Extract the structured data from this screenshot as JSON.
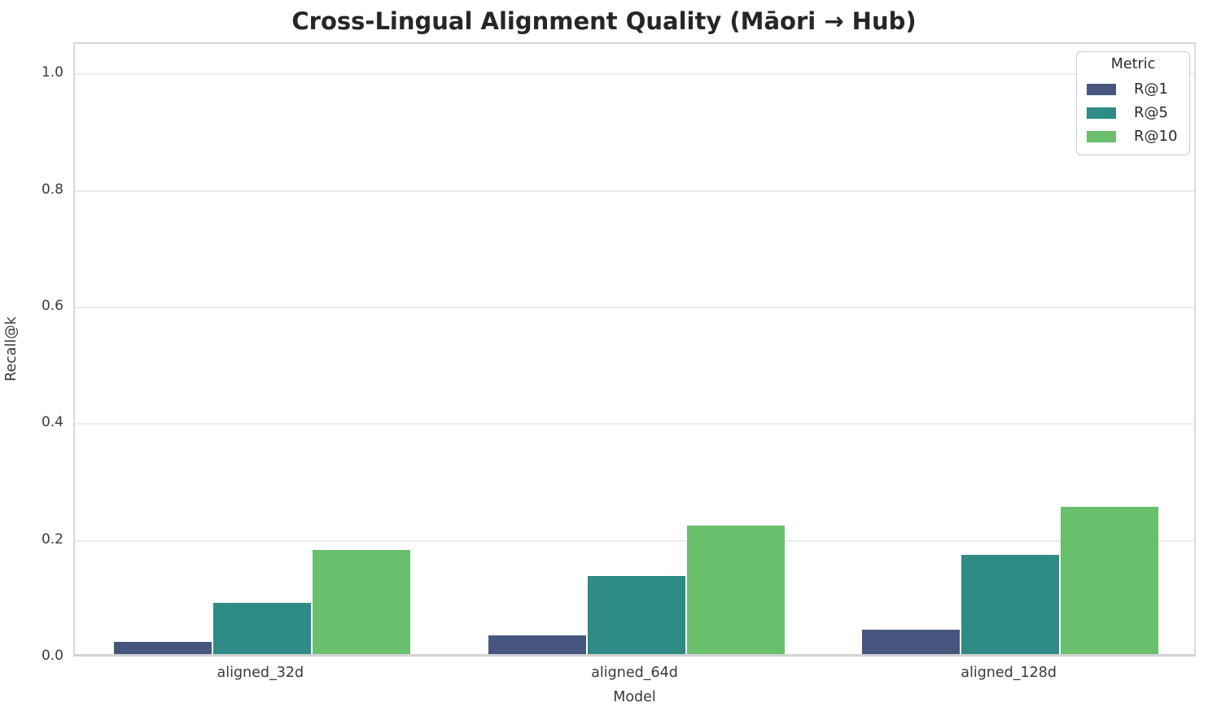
{
  "title": "Cross-Lingual Alignment Quality (Māori → Hub)",
  "chart_data": {
    "type": "bar",
    "title": "Cross-Lingual Alignment Quality (Māori → Hub)",
    "xlabel": "Model",
    "ylabel": "Recall@k",
    "categories": [
      "aligned_32d",
      "aligned_64d",
      "aligned_128d"
    ],
    "series": [
      {
        "name": "R@1",
        "color": "#46567E",
        "values": [
          0.024,
          0.035,
          0.045
        ]
      },
      {
        "name": "R@5",
        "color": "#2E8B85",
        "values": [
          0.091,
          0.137,
          0.173
        ]
      },
      {
        "name": "R@10",
        "color": "#69BF6C",
        "values": [
          0.182,
          0.223,
          0.255
        ]
      }
    ],
    "ylim": [
      0,
      1.05
    ],
    "yticks": [
      "0.0",
      "0.2",
      "0.4",
      "0.6",
      "0.8",
      "1.0"
    ],
    "grid": "horizontal",
    "legend": {
      "title": "Metric",
      "position": "upper right",
      "entries": [
        "R@1",
        "R@5",
        "R@10"
      ]
    }
  }
}
